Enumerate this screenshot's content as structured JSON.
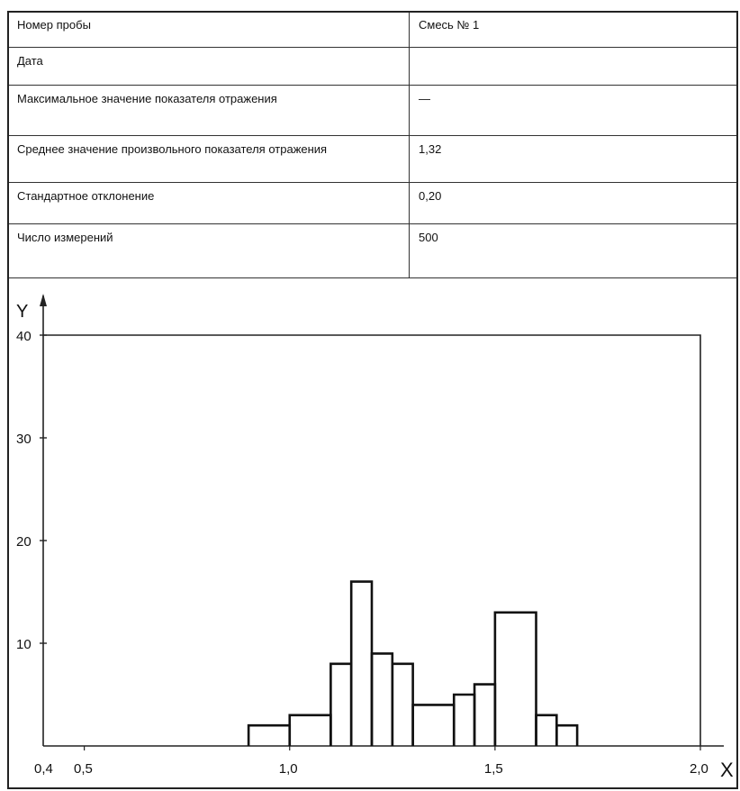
{
  "table": {
    "rows": [
      {
        "label": "Номер пробы",
        "value": "Смесь № 1"
      },
      {
        "label": "Дата",
        "value": ""
      },
      {
        "label": "Максимальное значение показателя отражения",
        "value": "—"
      },
      {
        "label": "Среднее значение произвольного показателя отражения",
        "value": "1,32"
      },
      {
        "label": "Стандартное отклонение",
        "value": "0,20"
      },
      {
        "label": "Число измерений",
        "value": "500"
      }
    ]
  },
  "chart_data": {
    "type": "bar",
    "xlabel": "X",
    "ylabel": "Y",
    "xlim": [
      0.4,
      2.0
    ],
    "ylim": [
      0,
      40
    ],
    "grid": false,
    "x_ticks": [
      {
        "value": 0.4,
        "label": "0,4"
      },
      {
        "value": 0.5,
        "label": "0,5"
      },
      {
        "value": 1.0,
        "label": "1,0"
      },
      {
        "value": 1.5,
        "label": "1,5"
      },
      {
        "value": 2.0,
        "label": "2,0"
      }
    ],
    "y_ticks": [
      {
        "value": 10,
        "label": "10"
      },
      {
        "value": 20,
        "label": "20"
      },
      {
        "value": 30,
        "label": "30"
      },
      {
        "value": 40,
        "label": "40"
      }
    ],
    "bins": [
      {
        "x0": 0.9,
        "x1": 1.0,
        "y": 2
      },
      {
        "x0": 1.0,
        "x1": 1.1,
        "y": 3
      },
      {
        "x0": 1.1,
        "x1": 1.15,
        "y": 8
      },
      {
        "x0": 1.15,
        "x1": 1.2,
        "y": 16
      },
      {
        "x0": 1.2,
        "x1": 1.25,
        "y": 9
      },
      {
        "x0": 1.25,
        "x1": 1.3,
        "y": 8
      },
      {
        "x0": 1.3,
        "x1": 1.4,
        "y": 4
      },
      {
        "x0": 1.4,
        "x1": 1.45,
        "y": 5
      },
      {
        "x0": 1.45,
        "x1": 1.5,
        "y": 6
      },
      {
        "x0": 1.5,
        "x1": 1.6,
        "y": 13
      },
      {
        "x0": 1.6,
        "x1": 1.65,
        "y": 3
      },
      {
        "x0": 1.65,
        "x1": 1.7,
        "y": 2
      }
    ]
  }
}
